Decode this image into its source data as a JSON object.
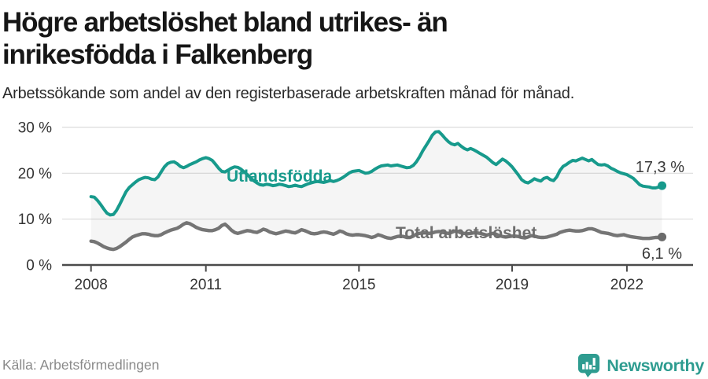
{
  "header": {
    "title": "Högre arbetslöshet bland utrikes- än inrikesfödda i Falkenberg",
    "subtitle": "Arbetssökande som andel av den registerbaserade arbetskraften månad för månad."
  },
  "footer": {
    "source": "Källa: Arbetsförmedlingen",
    "brand_name": "Newsworthy",
    "brand_icon": "newsworthy-chart-bubble-icon",
    "brand_color": "#2e9c90",
    "source_color": "#8a8a8a"
  },
  "chart_data": {
    "type": "line",
    "title": "Högre arbetslöshet bland utrikes- än inrikesfödda i Falkenberg",
    "subtitle": "Arbetssökande som andel av den registerbaserade arbetskraften månad för månad.",
    "x_monthly_from": "2008-01",
    "x_monthly_to": "2022-12",
    "xlim": [
      2008,
      2023.2
    ],
    "ylim": [
      0,
      32
    ],
    "grid": "horizontal",
    "area_between_series": true,
    "area_fill": "rgba(120,120,120,0.07)",
    "grid_color": "#dcdcdc",
    "axis_color": "#4b4b4b",
    "x_axis": {
      "ticks": [
        {
          "value": 2008,
          "label": "2008"
        },
        {
          "value": 2011,
          "label": "2011"
        },
        {
          "value": 2015,
          "label": "2015"
        },
        {
          "value": 2019,
          "label": "2019"
        },
        {
          "value": 2022,
          "label": "2022"
        }
      ]
    },
    "y_axis": {
      "ticks": [
        {
          "value": 0,
          "label": "0 %"
        },
        {
          "value": 10,
          "label": "10 %"
        },
        {
          "value": 20,
          "label": "20 %"
        },
        {
          "value": 30,
          "label": "30 %"
        }
      ]
    },
    "series": [
      {
        "name": "Utlandsfödda",
        "color": "#179a8c",
        "end_label": "17,3 %",
        "end_value": 17.3,
        "values": [
          14.9,
          14.8,
          14.1,
          13.2,
          12.2,
          11.3,
          10.9,
          11.0,
          11.9,
          13.2,
          14.6,
          16.0,
          16.9,
          17.5,
          18.1,
          18.6,
          18.9,
          19.1,
          19.0,
          18.7,
          18.6,
          19.2,
          20.3,
          21.4,
          22.1,
          22.4,
          22.5,
          22.1,
          21.5,
          21.2,
          21.5,
          21.9,
          22.2,
          22.5,
          22.9,
          23.2,
          23.4,
          23.2,
          22.8,
          22.0,
          21.1,
          20.4,
          20.3,
          20.7,
          21.1,
          21.4,
          21.3,
          20.9,
          20.3,
          19.7,
          19.0,
          18.4,
          17.9,
          17.5,
          17.4,
          17.6,
          17.5,
          17.3,
          17.4,
          17.6,
          17.5,
          17.3,
          17.1,
          17.2,
          17.4,
          17.2,
          17.1,
          17.4,
          17.7,
          17.9,
          18.1,
          18.2,
          18.1,
          18.0,
          18.2,
          18.4,
          18.2,
          18.4,
          18.7,
          19.1,
          19.6,
          20.1,
          20.4,
          20.5,
          20.6,
          20.3,
          20.0,
          20.1,
          20.4,
          20.9,
          21.3,
          21.6,
          21.7,
          21.8,
          21.6,
          21.7,
          21.8,
          21.6,
          21.4,
          21.2,
          21.3,
          21.7,
          22.5,
          23.6,
          24.9,
          26.0,
          27.1,
          28.3,
          29.0,
          29.1,
          28.4,
          27.6,
          26.9,
          26.4,
          26.2,
          26.5,
          25.9,
          25.4,
          25.1,
          25.4,
          25.1,
          24.7,
          24.3,
          23.9,
          23.5,
          22.9,
          22.3,
          21.9,
          22.5,
          23.1,
          22.7,
          22.1,
          21.4,
          20.5,
          19.6,
          18.6,
          18.1,
          17.9,
          18.3,
          18.8,
          18.5,
          18.3,
          18.9,
          19.1,
          18.6,
          18.4,
          19.2,
          20.6,
          21.5,
          21.9,
          22.4,
          22.8,
          22.7,
          23.0,
          23.3,
          23.0,
          22.7,
          23.0,
          22.4,
          21.9,
          21.8,
          21.9,
          21.6,
          21.1,
          20.8,
          20.4,
          20.1,
          19.9,
          19.7,
          19.3,
          18.9,
          18.2,
          17.5,
          17.2,
          17.1,
          17.0,
          16.8,
          16.8,
          17.0,
          17.3
        ]
      },
      {
        "name": "Total arbetslöshet",
        "color": "#757575",
        "end_label": "6,1 %",
        "end_value": 6.1,
        "values": [
          5.2,
          5.1,
          4.8,
          4.4,
          4.0,
          3.7,
          3.5,
          3.4,
          3.6,
          4.0,
          4.5,
          5.0,
          5.6,
          6.1,
          6.4,
          6.6,
          6.8,
          6.8,
          6.7,
          6.5,
          6.4,
          6.4,
          6.6,
          7.0,
          7.3,
          7.6,
          7.8,
          8.0,
          8.4,
          8.9,
          9.2,
          9.0,
          8.6,
          8.2,
          7.9,
          7.7,
          7.6,
          7.5,
          7.5,
          7.7,
          8.0,
          8.6,
          8.9,
          8.3,
          7.6,
          7.1,
          6.9,
          7.1,
          7.3,
          7.5,
          7.4,
          7.2,
          7.1,
          7.4,
          7.8,
          7.6,
          7.2,
          7.0,
          6.8,
          7.0,
          7.2,
          7.4,
          7.3,
          7.1,
          7.0,
          7.3,
          7.7,
          7.5,
          7.2,
          6.9,
          6.8,
          6.9,
          7.1,
          7.2,
          7.1,
          6.9,
          6.7,
          7.0,
          7.4,
          7.2,
          6.8,
          6.6,
          6.5,
          6.6,
          6.6,
          6.5,
          6.4,
          6.2,
          6.0,
          6.2,
          6.6,
          6.4,
          6.1,
          5.9,
          5.8,
          6.0,
          6.2,
          6.3,
          6.2,
          6.0,
          6.0,
          6.3,
          6.7,
          6.9,
          7.0,
          7.0,
          6.9,
          7.0,
          7.2,
          7.3,
          7.2,
          7.0,
          6.9,
          7.1,
          7.4,
          7.3,
          7.0,
          6.9,
          6.8,
          6.9,
          7.0,
          7.0,
          6.9,
          6.7,
          6.5,
          6.7,
          6.9,
          6.7,
          6.4,
          6.2,
          6.1,
          6.2,
          6.3,
          6.3,
          6.2,
          6.0,
          5.9,
          6.1,
          6.4,
          6.3,
          6.1,
          6.0,
          6.0,
          6.1,
          6.3,
          6.5,
          6.7,
          7.1,
          7.3,
          7.5,
          7.6,
          7.5,
          7.4,
          7.4,
          7.5,
          7.7,
          7.9,
          7.9,
          7.7,
          7.4,
          7.1,
          7.0,
          6.9,
          6.7,
          6.5,
          6.4,
          6.5,
          6.6,
          6.4,
          6.2,
          6.1,
          6.0,
          5.9,
          5.8,
          5.8,
          5.8,
          5.9,
          6.0,
          6.0,
          6.1
        ]
      }
    ]
  }
}
